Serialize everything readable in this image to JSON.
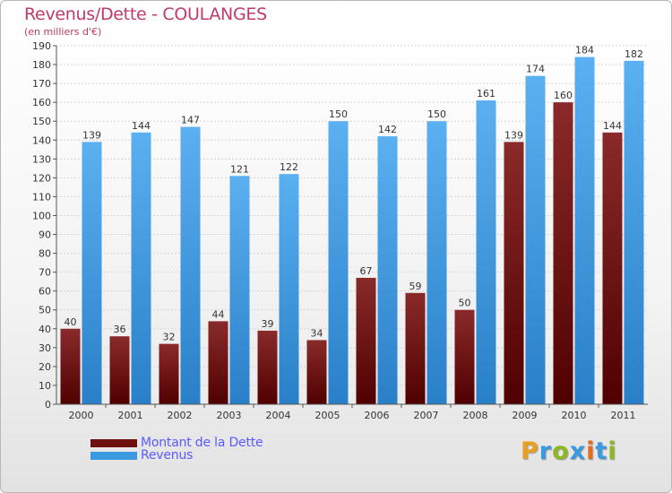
{
  "header": {
    "title": "Revenus/Dette - COULANGES",
    "subtitle": "(en milliers d'€)"
  },
  "chart_data": {
    "type": "bar",
    "title": "Revenus/Dette - COULANGES",
    "ylabel": "(en milliers d'€)",
    "xlabel": "",
    "categories": [
      "2000",
      "2001",
      "2002",
      "2003",
      "2004",
      "2005",
      "2006",
      "2007",
      "2008",
      "2009",
      "2010",
      "2011"
    ],
    "series": [
      {
        "name": "Montant de la Dette",
        "values": [
          40,
          36,
          32,
          44,
          39,
          34,
          67,
          59,
          50,
          139,
          160,
          144
        ],
        "color": "#7a1a1a"
      },
      {
        "name": "Revenus",
        "values": [
          139,
          144,
          147,
          121,
          122,
          150,
          142,
          150,
          161,
          174,
          184,
          182
        ],
        "color": "#3a9ae0"
      }
    ],
    "ylim": [
      0,
      190
    ],
    "yticks": [
      0,
      10,
      20,
      30,
      40,
      50,
      60,
      70,
      80,
      90,
      100,
      110,
      120,
      130,
      140,
      150,
      160,
      170,
      180,
      190
    ],
    "grid": true,
    "legend": "bottom-left"
  },
  "legend": {
    "items": [
      {
        "label": "Montant de la Dette",
        "color": "#6e1010"
      },
      {
        "label": "Revenus",
        "color": "#3a9ae0"
      }
    ]
  },
  "logo": {
    "letters": [
      "P",
      "r",
      "o",
      "x",
      "i",
      "t",
      "i"
    ],
    "colors": [
      "#e8a020",
      "#3a9ae0",
      "#8ab820",
      "#3a9ae0",
      "#e86a20",
      "#3a9ae0",
      "#8ab820"
    ]
  }
}
